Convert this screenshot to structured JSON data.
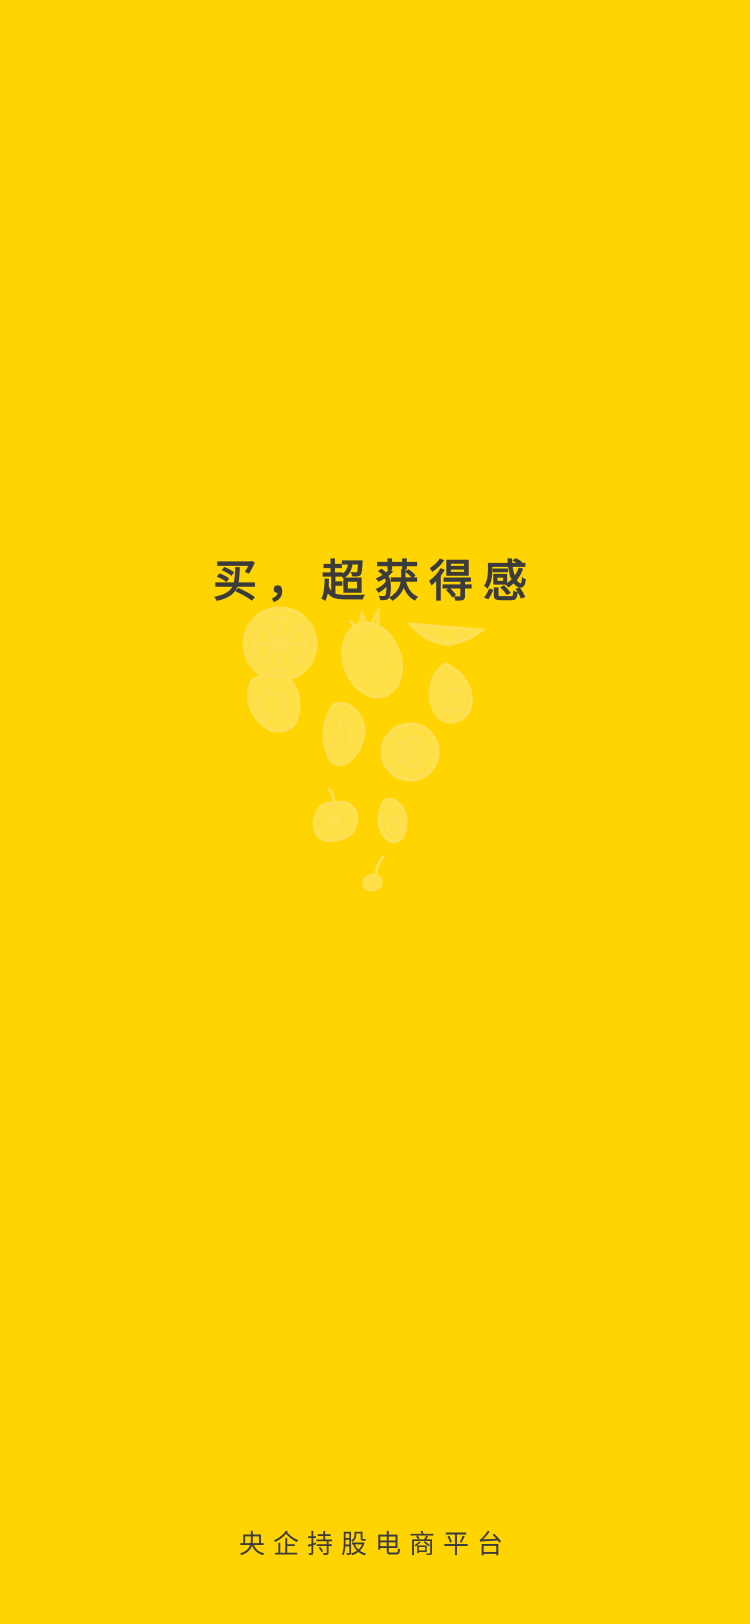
{
  "splash": {
    "tagline": "买，超获得感",
    "footer": "央企持股电商平台",
    "background_color": "#FFD400",
    "text_color": "#3b3b3b",
    "fruit_icons": [
      "orange-slice-icon",
      "dragon-fruit-icon",
      "watermelon-slice-icon",
      "apricot-icon",
      "avocado-icon",
      "papaya-icon",
      "kiwi-icon",
      "apple-icon",
      "pear-icon",
      "cherry-icon"
    ]
  }
}
